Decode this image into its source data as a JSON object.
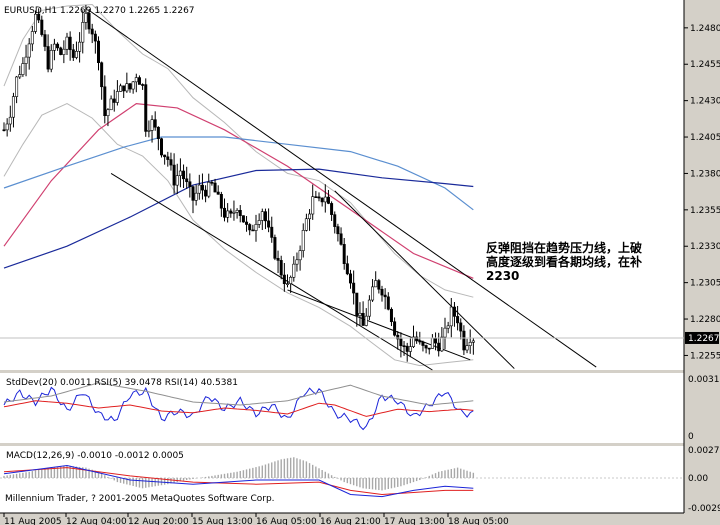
{
  "window": {
    "header": "EURUSD,H1  1.2269 1.2270 1.2265 1.2267",
    "footer": "Millennium Trader, ? 2001-2005 MetaQuotes Software Corp.",
    "annotation_lines": [
      "反弹阻挡在趋势压力线，上破",
      "高度逐级到看各期均线，在补",
      "2230"
    ]
  },
  "colors": {
    "background": "#d4d0c8",
    "plot": "#ffffff",
    "price_line": "#000000",
    "ma_fast": "#d04070",
    "ma_mid": "#5b8fd0",
    "ma_slow": "#1a2a9a",
    "bands": "#b8b8b8",
    "macd_bars": "#a8a8a8",
    "rsi5": "#1b24d8",
    "rsi14": "#e02020",
    "stddev": "#909090"
  },
  "chart_data": [
    {
      "type": "candlestick",
      "symbol": "EURUSD",
      "timeframe": "H1",
      "header_values": {
        "open": 1.2269,
        "high": 1.227,
        "low": 1.2265,
        "close": 1.2267
      },
      "current_price_label": "1.2267",
      "current_price": 1.2267,
      "ylim": [
        1.2245,
        1.2495
      ],
      "y_ticks": [
        "1.2480",
        "1.2455",
        "1.2430",
        "1.2405",
        "1.2380",
        "1.2355",
        "1.2330",
        "1.2305",
        "1.2280",
        "1.2255"
      ],
      "x_ticks": [
        "11 Aug 2005",
        "12 Aug 04:00",
        "12 Aug 20:00",
        "15 Aug 13:00",
        "16 Aug 05:00",
        "16 Aug 21:00",
        "17 Aug 13:00",
        "18 Aug 05:00"
      ],
      "price_waypoints": [
        [
          0,
          1.241
        ],
        [
          2,
          1.2422
        ],
        [
          4,
          1.2445
        ],
        [
          6,
          1.2455
        ],
        [
          8,
          1.2472
        ],
        [
          10,
          1.2488
        ],
        [
          12,
          1.2475
        ],
        [
          14,
          1.2455
        ],
        [
          16,
          1.2468
        ],
        [
          18,
          1.2462
        ],
        [
          20,
          1.247
        ],
        [
          22,
          1.246
        ],
        [
          24,
          1.2472
        ],
        [
          26,
          1.2488
        ],
        [
          28,
          1.2478
        ],
        [
          30,
          1.246
        ],
        [
          32,
          1.242
        ],
        [
          34,
          1.2428
        ],
        [
          36,
          1.2435
        ],
        [
          38,
          1.244
        ],
        [
          40,
          1.2438
        ],
        [
          42,
          1.2448
        ],
        [
          44,
          1.244
        ],
        [
          45,
          1.2412
        ],
        [
          47,
          1.2415
        ],
        [
          49,
          1.2405
        ],
        [
          50,
          1.2396
        ],
        [
          52,
          1.239
        ],
        [
          54,
          1.2375
        ],
        [
          56,
          1.2382
        ],
        [
          58,
          1.2372
        ],
        [
          60,
          1.2362
        ],
        [
          62,
          1.237
        ],
        [
          64,
          1.2368
        ],
        [
          66,
          1.2372
        ],
        [
          68,
          1.2362
        ],
        [
          70,
          1.2352
        ],
        [
          72,
          1.235
        ],
        [
          74,
          1.2358
        ],
        [
          76,
          1.2348
        ],
        [
          78,
          1.2338
        ],
        [
          80,
          1.2348
        ],
        [
          82,
          1.2355
        ],
        [
          84,
          1.234
        ],
        [
          86,
          1.2325
        ],
        [
          88,
          1.2312
        ],
        [
          90,
          1.2302
        ],
        [
          92,
          1.2314
        ],
        [
          94,
          1.233
        ],
        [
          96,
          1.2348
        ],
        [
          98,
          1.2362
        ],
        [
          100,
          1.236
        ],
        [
          102,
          1.2365
        ],
        [
          104,
          1.2352
        ],
        [
          106,
          1.2338
        ],
        [
          108,
          1.2322
        ],
        [
          110,
          1.2308
        ],
        [
          112,
          1.2285
        ],
        [
          114,
          1.2275
        ],
        [
          116,
          1.2292
        ],
        [
          118,
          1.2305
        ],
        [
          120,
          1.23
        ],
        [
          122,
          1.229
        ],
        [
          124,
          1.2272
        ],
        [
          126,
          1.2262
        ],
        [
          128,
          1.2258
        ],
        [
          130,
          1.2268
        ],
        [
          132,
          1.2262
        ],
        [
          134,
          1.2258
        ],
        [
          136,
          1.2265
        ],
        [
          138,
          1.2262
        ],
        [
          140,
          1.227
        ],
        [
          142,
          1.2285
        ],
        [
          144,
          1.228
        ],
        [
          146,
          1.2262
        ],
        [
          148,
          1.2268
        ],
        [
          149,
          1.2267
        ]
      ],
      "moving_averages": [
        {
          "color_key": "ma_fast",
          "points": [
            [
              0,
              1.233
            ],
            [
              15,
              1.2375
            ],
            [
              30,
              1.241
            ],
            [
              42,
              1.2428
            ],
            [
              55,
              1.2425
            ],
            [
              70,
              1.241
            ],
            [
              90,
              1.2385
            ],
            [
              110,
              1.2355
            ],
            [
              130,
              1.2325
            ],
            [
              149,
              1.2308
            ]
          ]
        },
        {
          "color_key": "ma_mid",
          "points": [
            [
              0,
              1.237
            ],
            [
              20,
              1.2385
            ],
            [
              38,
              1.2398
            ],
            [
              50,
              1.2405
            ],
            [
              70,
              1.2405
            ],
            [
              90,
              1.24
            ],
            [
              110,
              1.2395
            ],
            [
              125,
              1.2385
            ],
            [
              140,
              1.237
            ],
            [
              149,
              1.2355
            ]
          ]
        },
        {
          "color_key": "ma_slow",
          "points": [
            [
              0,
              1.2315
            ],
            [
              20,
              1.233
            ],
            [
              40,
              1.235
            ],
            [
              60,
              1.2372
            ],
            [
              80,
              1.2382
            ],
            [
              100,
              1.2383
            ],
            [
              120,
              1.2377
            ],
            [
              140,
              1.2373
            ],
            [
              149,
              1.2371
            ]
          ]
        }
      ],
      "bollinger_upper": [
        [
          0,
          1.244
        ],
        [
          6,
          1.2472
        ],
        [
          12,
          1.2492
        ],
        [
          20,
          1.2495
        ],
        [
          28,
          1.2496
        ],
        [
          36,
          1.2478
        ],
        [
          44,
          1.2462
        ],
        [
          52,
          1.2452
        ],
        [
          60,
          1.2432
        ],
        [
          70,
          1.2415
        ],
        [
          80,
          1.2395
        ],
        [
          90,
          1.238
        ],
        [
          100,
          1.2375
        ],
        [
          110,
          1.236
        ],
        [
          116,
          1.2345
        ],
        [
          124,
          1.2325
        ],
        [
          132,
          1.231
        ],
        [
          140,
          1.23
        ],
        [
          149,
          1.2295
        ]
      ],
      "bollinger_lower": [
        [
          0,
          1.2378
        ],
        [
          6,
          1.24
        ],
        [
          12,
          1.242
        ],
        [
          20,
          1.2428
        ],
        [
          28,
          1.2418
        ],
        [
          36,
          1.24
        ],
        [
          44,
          1.2392
        ],
        [
          52,
          1.2375
        ],
        [
          60,
          1.2348
        ],
        [
          70,
          1.2328
        ],
        [
          80,
          1.2312
        ],
        [
          90,
          1.2298
        ],
        [
          100,
          1.2288
        ],
        [
          110,
          1.2275
        ],
        [
          116,
          1.2265
        ],
        [
          124,
          1.2252
        ],
        [
          132,
          1.2248
        ],
        [
          140,
          1.225
        ],
        [
          149,
          1.2252
        ]
      ],
      "trendlines": [
        {
          "points": [
            [
              27,
              1.2492
            ],
            [
              188,
              1.2247
            ]
          ]
        },
        {
          "points": [
            [
              34,
              1.238
            ],
            [
              136,
              1.2245
            ]
          ]
        },
        {
          "points": [
            [
              105,
              1.2368
            ],
            [
              162,
              1.2246
            ]
          ]
        },
        {
          "points": [
            [
              90,
              1.23
            ],
            [
              148,
              1.2252
            ]
          ]
        }
      ]
    },
    {
      "type": "line",
      "indicator": "StdDev/RSI",
      "header": "StdDev(20) 0.0011  RSI(5) 39.0478  RSI(14) 40.5381",
      "y_ticks": [
        "0.0031",
        "0"
      ],
      "series": [
        {
          "name": "RSI(5)",
          "color_key": "rsi5",
          "points": [
            [
              0,
              0.55
            ],
            [
              5,
              0.75
            ],
            [
              10,
              0.6
            ],
            [
              15,
              0.82
            ],
            [
              20,
              0.45
            ],
            [
              25,
              0.78
            ],
            [
              30,
              0.4
            ],
            [
              35,
              0.28
            ],
            [
              40,
              0.72
            ],
            [
              45,
              0.78
            ],
            [
              50,
              0.32
            ],
            [
              55,
              0.45
            ],
            [
              60,
              0.36
            ],
            [
              65,
              0.7
            ],
            [
              70,
              0.48
            ],
            [
              75,
              0.62
            ],
            [
              80,
              0.4
            ],
            [
              85,
              0.55
            ],
            [
              90,
              0.3
            ],
            [
              95,
              0.75
            ],
            [
              100,
              0.8
            ],
            [
              105,
              0.4
            ],
            [
              110,
              0.32
            ],
            [
              115,
              0.16
            ],
            [
              120,
              0.7
            ],
            [
              125,
              0.62
            ],
            [
              130,
              0.35
            ],
            [
              135,
              0.55
            ],
            [
              140,
              0.78
            ],
            [
              145,
              0.42
            ],
            [
              149,
              0.4
            ]
          ]
        },
        {
          "name": "RSI(14)",
          "color_key": "rsi14",
          "points": [
            [
              0,
              0.52
            ],
            [
              10,
              0.62
            ],
            [
              20,
              0.58
            ],
            [
              30,
              0.5
            ],
            [
              40,
              0.55
            ],
            [
              50,
              0.45
            ],
            [
              60,
              0.42
            ],
            [
              70,
              0.5
            ],
            [
              80,
              0.46
            ],
            [
              90,
              0.4
            ],
            [
              100,
              0.58
            ],
            [
              105,
              0.55
            ],
            [
              115,
              0.36
            ],
            [
              125,
              0.48
            ],
            [
              135,
              0.44
            ],
            [
              145,
              0.48
            ],
            [
              149,
              0.46
            ]
          ]
        },
        {
          "name": "StdDev(20)",
          "color_key": "stddev",
          "points": [
            [
              0,
              0.6
            ],
            [
              15,
              0.7
            ],
            [
              30,
              0.92
            ],
            [
              45,
              0.78
            ],
            [
              60,
              0.6
            ],
            [
              75,
              0.55
            ],
            [
              90,
              0.62
            ],
            [
              100,
              0.76
            ],
            [
              110,
              0.88
            ],
            [
              120,
              0.7
            ],
            [
              135,
              0.55
            ],
            [
              149,
              0.62
            ]
          ]
        }
      ]
    },
    {
      "type": "bar",
      "indicator": "MACD",
      "header": "MACD(12,26,9) -0.0010 -0.0012 0.0005",
      "y_ticks": [
        "0.0027",
        "0.00",
        "-0.0029"
      ],
      "histogram": [
        [
          0,
          0.0002
        ],
        [
          8,
          0.0006
        ],
        [
          14,
          0.001
        ],
        [
          20,
          0.0012
        ],
        [
          26,
          0.001
        ],
        [
          30,
          0.0006
        ],
        [
          36,
          -0.0004
        ],
        [
          44,
          -0.001
        ],
        [
          52,
          -0.0006
        ],
        [
          58,
          -0.0002
        ],
        [
          66,
          0.0002
        ],
        [
          74,
          0.0006
        ],
        [
          82,
          0.0012
        ],
        [
          88,
          0.0018
        ],
        [
          92,
          0.002
        ],
        [
          96,
          0.0016
        ],
        [
          102,
          0.0006
        ],
        [
          108,
          -0.0004
        ],
        [
          114,
          -0.001
        ],
        [
          120,
          -0.0012
        ],
        [
          126,
          -0.0008
        ],
        [
          132,
          -0.0002
        ],
        [
          138,
          0.0006
        ],
        [
          144,
          0.001
        ],
        [
          149,
          0.0005
        ]
      ],
      "signal_line": [
        [
          0,
          0.0006
        ],
        [
          20,
          0.001
        ],
        [
          40,
          0.0002
        ],
        [
          60,
          -0.0004
        ],
        [
          80,
          -0.0006
        ],
        [
          100,
          -0.0004
        ],
        [
          110,
          -0.0012
        ],
        [
          120,
          -0.0016
        ],
        [
          130,
          -0.0014
        ],
        [
          140,
          -0.0012
        ],
        [
          149,
          -0.0012
        ]
      ],
      "macd_line": [
        [
          0,
          0.0004
        ],
        [
          20,
          0.0012
        ],
        [
          40,
          -0.0002
        ],
        [
          60,
          -0.0006
        ],
        [
          80,
          -0.0002
        ],
        [
          100,
          -0.0002
        ],
        [
          110,
          -0.0016
        ],
        [
          120,
          -0.0018
        ],
        [
          130,
          -0.0012
        ],
        [
          140,
          -0.0008
        ],
        [
          149,
          -0.001
        ]
      ]
    }
  ]
}
